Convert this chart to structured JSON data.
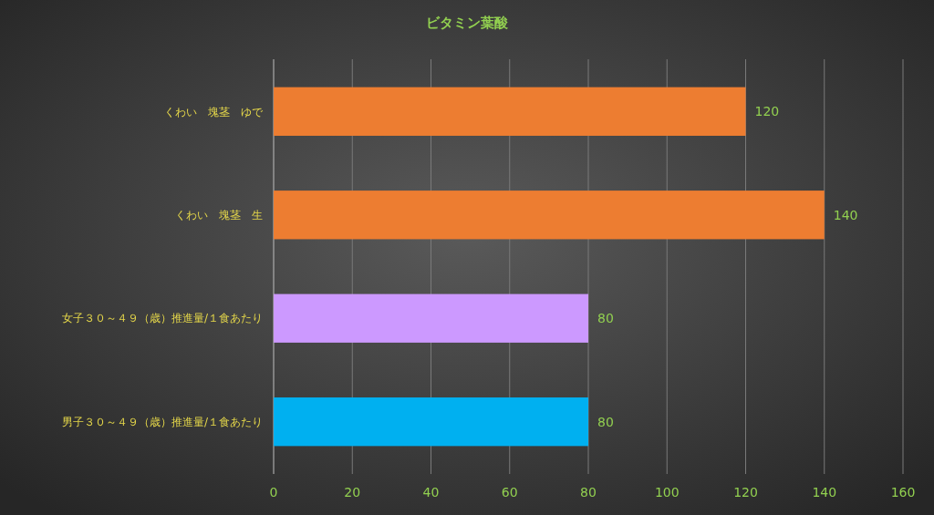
{
  "chart_data": {
    "type": "bar",
    "orientation": "horizontal",
    "title": "ビタミン葉酸",
    "categories": [
      "くわい　塊茎　ゆで",
      "くわい　塊茎　生",
      "女子３０～４９（歳）推進量/１食あたり",
      "男子３０～４９（歳）推進量/１食あたり"
    ],
    "values": [
      120,
      140,
      80,
      80
    ],
    "colors": [
      "#ed7d31",
      "#ed7d31",
      "#cc99ff",
      "#00b0f0"
    ],
    "xlim": [
      0,
      160
    ],
    "xticks": [
      0,
      20,
      40,
      60,
      80,
      100,
      120,
      140,
      160
    ],
    "grid": "x",
    "data_labels": true
  }
}
